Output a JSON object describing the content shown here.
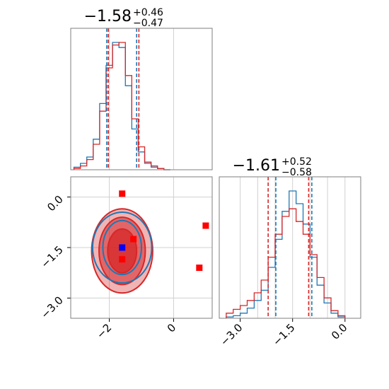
{
  "chart_data": [
    {
      "type": "histogram",
      "panel": "top-left marginal",
      "title": {
        "value": "−1.58",
        "plus": "+0.46",
        "minus": "−0.47"
      },
      "xlim": [
        -3.2,
        1.2
      ],
      "grid": true,
      "bins_x": [
        -3.0,
        -2.8,
        -2.6,
        -2.4,
        -2.2,
        -2.0,
        -1.8,
        -1.6,
        -1.4,
        -1.2,
        -1.0,
        -0.8,
        -0.6,
        -0.4,
        -0.2
      ],
      "series": [
        {
          "color": "#1f77b4",
          "values": [
            2,
            5,
            10,
            24,
            52,
            82,
            100,
            96,
            66,
            32,
            14,
            5,
            2,
            1,
            0
          ]
        },
        {
          "color": "#d62728",
          "values": [
            1,
            3,
            8,
            20,
            46,
            80,
            98,
            100,
            74,
            40,
            18,
            6,
            3,
            1,
            0
          ]
        }
      ],
      "quantile_lines": [
        {
          "color": "#1f77b4",
          "x": [
            -2.08,
            -1.15
          ]
        },
        {
          "color": "#d62728",
          "x": [
            -2.03,
            -1.08
          ]
        }
      ]
    },
    {
      "type": "contour",
      "panel": "bottom-left joint",
      "xlim": [
        -3.2,
        1.2
      ],
      "ylim": [
        -3.6,
        0.6
      ],
      "xticks": [
        "−2",
        "0"
      ],
      "xtick_values": [
        -2,
        0
      ],
      "yticks": [
        "0.0",
        "−1.5",
        "−3.0"
      ],
      "ytick_values": [
        0.0,
        -1.5,
        -3.0
      ],
      "grid": true,
      "contours": [
        {
          "color": "#d62728",
          "center": [
            -1.6,
            -1.6
          ],
          "radii": [
            [
              0.95,
              1.25
            ],
            [
              0.72,
              1.0
            ],
            [
              0.45,
              0.65
            ]
          ]
        },
        {
          "color": "#1f77b4",
          "center": [
            -1.6,
            -1.5
          ],
          "radii": [
            [
              0.92,
              1.05
            ],
            [
              0.6,
              0.8
            ]
          ]
        }
      ],
      "markers": [
        {
          "color": "#ff0000",
          "x": -1.6,
          "y": 0.1
        },
        {
          "color": "#ff0000",
          "x": 1.0,
          "y": -0.85
        },
        {
          "color": "#ff0000",
          "x": -1.25,
          "y": -1.25
        },
        {
          "color": "#ff0000",
          "x": -1.6,
          "y": -1.85
        },
        {
          "color": "#ff0000",
          "x": 0.8,
          "y": -2.1
        },
        {
          "color": "#0000ff",
          "x": -1.6,
          "y": -1.5
        }
      ]
    },
    {
      "type": "histogram",
      "panel": "bottom-right marginal",
      "title": {
        "value": "−1.61",
        "plus": "+0.52",
        "minus": "−0.58"
      },
      "xlim": [
        -3.6,
        0.45
      ],
      "xticks": [
        "−3.0",
        "−1.5",
        "0.0"
      ],
      "xtick_values": [
        -3.0,
        -1.5,
        0.0
      ],
      "grid": true,
      "bins_x": [
        -3.3,
        -3.1,
        -2.9,
        -2.7,
        -2.5,
        -2.3,
        -2.1,
        -1.9,
        -1.7,
        -1.5,
        -1.3,
        -1.1,
        -0.9,
        -0.7,
        -0.5,
        -0.3,
        -0.1
      ],
      "series": [
        {
          "color": "#1f77b4",
          "values": [
            1,
            2,
            4,
            8,
            14,
            22,
            40,
            62,
            84,
            100,
            90,
            74,
            48,
            26,
            12,
            4,
            1
          ]
        },
        {
          "color": "#d62728",
          "values": [
            4,
            7,
            10,
            14,
            20,
            30,
            48,
            66,
            80,
            86,
            76,
            66,
            50,
            32,
            16,
            6,
            2
          ]
        }
      ],
      "quantile_lines": [
        {
          "color": "#d62728",
          "x": [
            -2.2,
            -1.04
          ]
        },
        {
          "color": "#1f77b4",
          "x": [
            -1.98,
            -0.95
          ]
        }
      ]
    }
  ]
}
